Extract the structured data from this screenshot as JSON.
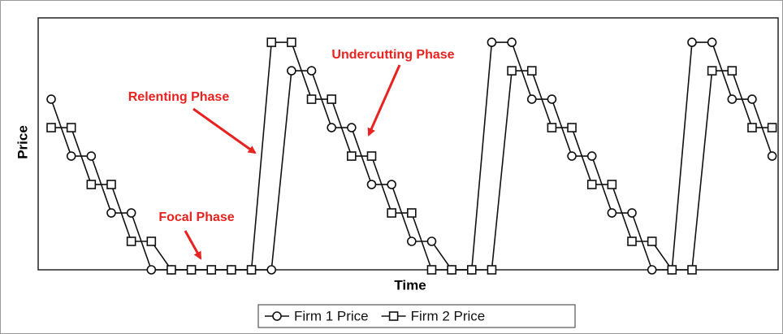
{
  "chart_data": {
    "type": "line",
    "x_label": "Time",
    "y_label": "Price",
    "x": [
      0,
      1,
      2,
      3,
      4,
      5,
      6,
      7,
      8,
      9,
      10,
      11,
      12,
      13,
      14,
      15,
      16,
      17,
      18,
      19,
      20,
      21,
      22,
      23,
      24,
      25,
      26,
      27,
      28,
      29,
      30,
      31,
      32,
      33,
      34,
      35,
      36
    ],
    "series": [
      {
        "name": "Firm 1 Price",
        "color": "#111111",
        "marker": "circle",
        "values": [
          6,
          4,
          4,
          2,
          2,
          0,
          0,
          0,
          0,
          0,
          0,
          0,
          7,
          7,
          5,
          5,
          3,
          3,
          1,
          1,
          0,
          0,
          8,
          8,
          6,
          6,
          4,
          4,
          2,
          2,
          0,
          0,
          8,
          8,
          6,
          6,
          4
        ]
      },
      {
        "name": "Firm 2 Price",
        "color": "#111111",
        "marker": "square",
        "values": [
          5,
          5,
          3,
          3,
          1,
          1,
          0,
          0,
          0,
          0,
          0,
          8,
          8,
          6,
          6,
          4,
          4,
          2,
          2,
          0,
          0,
          0,
          0,
          7,
          7,
          5,
          5,
          3,
          3,
          1,
          1,
          0,
          0,
          7,
          7,
          5,
          5
        ]
      }
    ],
    "xlim": [
      -0.65,
      36.3
    ],
    "ylim": [
      0,
      8.86
    ],
    "annotations": [
      "Relenting Phase",
      "Undercutting Phase",
      "Focal Phase"
    ],
    "annotation_color": "#e8231f"
  }
}
